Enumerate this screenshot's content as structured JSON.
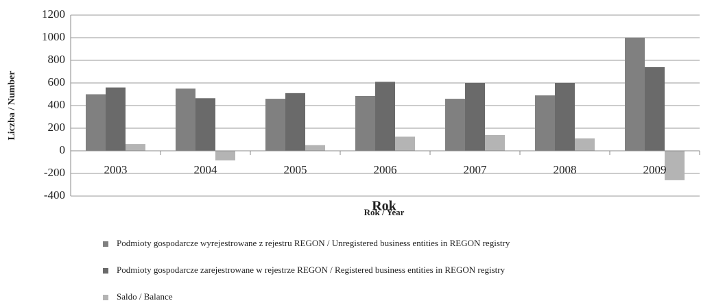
{
  "chart_data": {
    "type": "bar",
    "categories": [
      "2003",
      "2004",
      "2005",
      "2006",
      "2007",
      "2008",
      "2009"
    ],
    "series": [
      {
        "name": "Podmioty gospodarcze wyrejestrowane z rejestru REGON / Unregistered business entities in REGON registry",
        "color": "#808080",
        "values": [
          500,
          550,
          460,
          485,
          460,
          490,
          1000
        ]
      },
      {
        "name": "Podmioty gospodarcze zarejestrowane w rejestrze REGON / Registered business entities in REGON registry",
        "color": "#6a6a6a",
        "values": [
          560,
          465,
          510,
          610,
          600,
          600,
          740
        ]
      },
      {
        "name": "Saldo / Balance",
        "color": "#b4b4b4",
        "values": [
          60,
          -85,
          50,
          125,
          140,
          110,
          -260
        ]
      }
    ],
    "ylabel": "Liczba / Number",
    "xlabel": "Rok / Year",
    "annotation": "Rok",
    "ylim": [
      -400,
      1200
    ],
    "yticks": [
      -400,
      -200,
      0,
      200,
      400,
      600,
      800,
      1000,
      1200
    ],
    "grid": true
  }
}
